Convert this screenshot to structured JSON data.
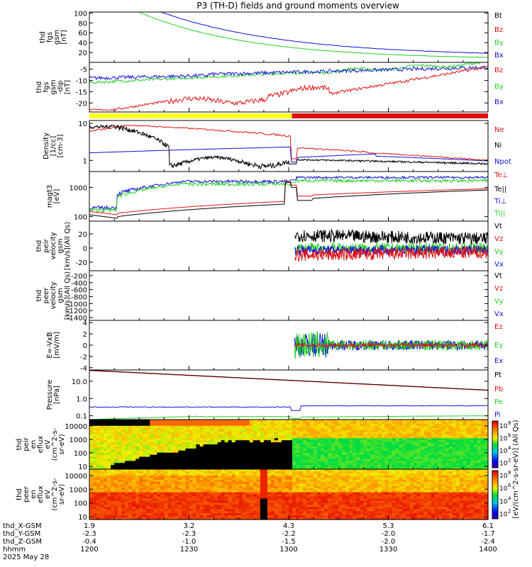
{
  "title": "P3 (TH-D) fields and ground moments overview",
  "colors": {
    "black": "#000000",
    "red": "#e01010",
    "green": "#20d020",
    "blue": "#1010e0",
    "yellow": "#ffff20"
  },
  "chart_data": [
    {
      "type": "line",
      "id": "fgs_gsm",
      "ylabel_lines": [
        "thd",
        "fgs",
        "gsm",
        "[nT]"
      ],
      "yticks": [
        20,
        40,
        60,
        80,
        100
      ],
      "ylim": [
        0,
        102
      ],
      "series": [
        {
          "name": "Bt",
          "color": "black"
        },
        {
          "name": "Bz",
          "color": "red"
        },
        {
          "name": "By",
          "color": "green"
        },
        {
          "name": "Bx",
          "color": "blue"
        }
      ]
    },
    {
      "type": "line",
      "id": "fgs_gsm_dip",
      "ylabel_lines": [
        "thd",
        "fgs",
        "gsm",
        "-dip",
        "[nT]"
      ],
      "yticks": [
        -5,
        -10,
        -15,
        -20
      ],
      "ylim": [
        -24,
        -2
      ],
      "series": [
        {
          "name": "Bz",
          "color": "red"
        },
        {
          "name": "By",
          "color": "green"
        },
        {
          "name": "Bx",
          "color": "blue"
        }
      ]
    },
    {
      "type": "bar",
      "id": "mode_bar",
      "segments": [
        {
          "from": "1200",
          "to": "1300",
          "color": "yellow"
        },
        {
          "from": "1300",
          "to": "1400",
          "color": "red"
        }
      ]
    },
    {
      "type": "line",
      "id": "density",
      "ylabel_lines": [
        "Density",
        "[1/cc]",
        "[cm-3]"
      ],
      "yticks": [
        "10",
        "1"
      ],
      "scale": "log",
      "ylim": [
        0.5,
        12
      ],
      "series": [
        {
          "name": "Ne",
          "color": "red"
        },
        {
          "name": "Ni",
          "color": "black"
        },
        {
          "name": "Npot",
          "color": "blue"
        }
      ]
    },
    {
      "type": "line",
      "id": "temperature",
      "ylabel_lines": [
        "magt3",
        "[eV]"
      ],
      "yticks": [
        "1000",
        "100"
      ],
      "scale": "log",
      "ylim": [
        70,
        3500
      ],
      "series": [
        {
          "name": "Te⊥",
          "color": "red"
        },
        {
          "name": "Te||",
          "color": "black"
        },
        {
          "name": "Ti⊥",
          "color": "blue"
        },
        {
          "name": "Ti||",
          "color": "green"
        }
      ]
    },
    {
      "type": "line",
      "id": "peir_velocity",
      "ylabel_lines": [
        "thd",
        "peir",
        "velocity",
        "gsm",
        "[km/s](All Qs)"
      ],
      "yticks": [
        20,
        0,
        -20
      ],
      "ylim": [
        -32,
        38
      ],
      "series": [
        {
          "name": "Vt",
          "color": "black"
        },
        {
          "name": "Vz",
          "color": "red"
        },
        {
          "name": "Vy",
          "color": "green"
        },
        {
          "name": "Vx",
          "color": "blue"
        }
      ]
    },
    {
      "type": "line",
      "id": "peer_velocity",
      "ylabel_lines": [
        "thd",
        "peer",
        "velocity",
        "gsm",
        "[km/s](All Qs)"
      ],
      "yticks": [
        -200,
        -400,
        -600,
        -800,
        -1000,
        -1200,
        -1400
      ],
      "ylim": [
        -1480,
        -60
      ],
      "series": [
        {
          "name": "Vt",
          "color": "black"
        },
        {
          "name": "Vz",
          "color": "red"
        },
        {
          "name": "Vy",
          "color": "green"
        },
        {
          "name": "Vx",
          "color": "blue"
        }
      ]
    },
    {
      "type": "line",
      "id": "efield",
      "ylabel_lines": [
        "E=-VxB",
        "[mV/m]"
      ],
      "yticks": [
        4,
        2,
        0,
        -2,
        -4
      ],
      "ylim": [
        -4.4,
        4.4
      ],
      "series": [
        {
          "name": "Ez",
          "color": "red"
        },
        {
          "name": "Ey",
          "color": "green"
        },
        {
          "name": "Ex",
          "color": "blue"
        }
      ]
    },
    {
      "type": "line",
      "id": "pressure",
      "ylabel_lines": [
        "Pressure",
        "[nPa]"
      ],
      "yticks": [
        "10.0",
        "1.0",
        "0.1"
      ],
      "scale": "log",
      "ylim": [
        0.06,
        45
      ],
      "series": [
        {
          "name": "Pt",
          "color": "black"
        },
        {
          "name": "Pb",
          "color": "red"
        },
        {
          "name": "Pe",
          "color": "green"
        },
        {
          "name": "Pi",
          "color": "blue"
        }
      ]
    },
    {
      "type": "heatmap",
      "id": "peir_eflux",
      "ylabel_lines": [
        "thd",
        "peir",
        "en",
        "eflux",
        "eV",
        "(cm^2-s-",
        "sr-eV)"
      ],
      "yticks": [
        "10000",
        "1000",
        "100",
        "10"
      ],
      "scale": "log"
    },
    {
      "type": "heatmap",
      "id": "peer_eflux",
      "ylabel_lines": [
        "thd",
        "peer",
        "en",
        "eflux",
        "eV",
        "(cm^2-s-",
        "sr-eV)"
      ],
      "yticks": [
        "10000",
        "1000",
        "100",
        "10"
      ],
      "scale": "log"
    }
  ],
  "colorbar": {
    "ticks": [
      "10",
      "10",
      "10",
      "10",
      "10"
    ],
    "exponents": [
      "8",
      "6",
      "4",
      "2"
    ],
    "top_exp": "8",
    "label": "[eV/(cm^2-s-sr-eV)] (All Qs)"
  },
  "xaxis": {
    "ticks": [
      {
        "x_gsm": "1.9",
        "y_gsm": "-2.3",
        "z_gsm": "-0.4",
        "hhmm": "1200"
      },
      {
        "x_gsm": "3.2",
        "y_gsm": "-2.3",
        "z_gsm": "-1.0",
        "hhmm": "1230"
      },
      {
        "x_gsm": "4.3",
        "y_gsm": "-2.2",
        "z_gsm": "-1.5",
        "hhmm": "1300"
      },
      {
        "x_gsm": "5.3",
        "y_gsm": "-2.0",
        "z_gsm": "-2.0",
        "hhmm": "1330"
      },
      {
        "x_gsm": "6.1",
        "y_gsm": "-1.7",
        "z_gsm": "-2.4",
        "hhmm": "1400"
      }
    ],
    "row_labels": [
      "thd_X-GSM",
      "thd_Y-GSM",
      "thd_Z-GSM",
      "hhmm"
    ],
    "date": "2025 May 28"
  }
}
